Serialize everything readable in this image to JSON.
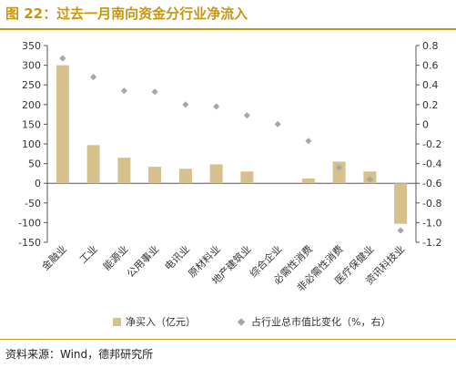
{
  "header": {
    "title": "图 22：过去一月南向资金分行业净流入"
  },
  "footer": {
    "source": "资料来源：Wind，德邦研究所"
  },
  "chart_data": {
    "type": "bar",
    "categories": [
      "金融业",
      "工业",
      "能源业",
      "公用事业",
      "电讯业",
      "原材料业",
      "地产建筑业",
      "综合企业",
      "必需性消费",
      "非必需性消费",
      "医疗保健业",
      "资讯科技业"
    ],
    "series": [
      {
        "name": "净买入（亿元）",
        "type": "bar",
        "axis": "left",
        "color": "#d6c08e",
        "values": [
          300,
          97,
          65,
          42,
          37,
          48,
          30,
          0,
          12,
          55,
          30,
          -103
        ]
      },
      {
        "name": "占行业总市值比变化（%，右）",
        "type": "scatter",
        "axis": "right",
        "color": "#a6a6a6",
        "values": [
          0.67,
          0.48,
          0.34,
          0.33,
          0.2,
          0.18,
          0.09,
          0.0,
          -0.17,
          -0.44,
          -0.56,
          -1.08
        ]
      }
    ],
    "y_left": {
      "min": -150,
      "max": 350,
      "ticks": [
        "350",
        "300",
        "250",
        "200",
        "150",
        "100",
        "50",
        "0",
        "-50",
        "-100",
        "-150"
      ]
    },
    "y_right": {
      "min": -1.2,
      "max": 0.8,
      "ticks": [
        "0.8",
        "0.6",
        "0.4",
        "0.2",
        "0",
        "-0.2",
        "-0.4",
        "-0.6",
        "-0.8",
        "-1.0",
        "-1.2"
      ]
    },
    "grid": false,
    "legend_position": "bottom"
  }
}
